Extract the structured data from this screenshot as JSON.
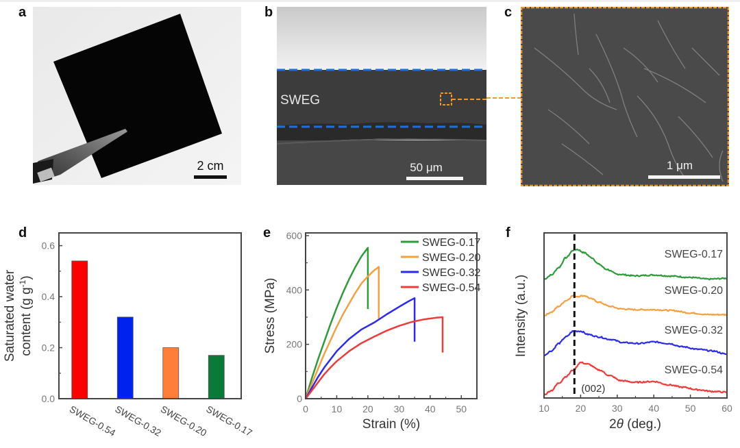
{
  "panels": {
    "a": {
      "letter": "a",
      "scale_bar_label": "2 cm"
    },
    "b": {
      "letter": "b",
      "layer_label": "SWEG",
      "scale_bar_label": "50 μm",
      "boundary_color": "#1f6fe0",
      "inset_color": "#f0962a"
    },
    "c": {
      "letter": "c",
      "scale_bar_label": "1 μm",
      "border_color": "#f0962a"
    },
    "d": {
      "letter": "d"
    },
    "e": {
      "letter": "e"
    },
    "f": {
      "letter": "f"
    }
  },
  "chart_data": [
    {
      "id": "d",
      "type": "bar",
      "title": "",
      "xlabel": "",
      "ylabel_line1": "Saturated water",
      "ylabel_line2": "content (g g",
      "ylabel_sup": "-1",
      "ylabel_end": ")",
      "ylim": [
        0,
        0.65
      ],
      "yticks": [
        0.0,
        0.2,
        0.4,
        0.6
      ],
      "ytick_labels": [
        "0.0",
        "0.2",
        "0.4",
        "0.6"
      ],
      "categories": [
        "SWEG-0.54",
        "SWEG-0.32",
        "SWEG-0.20",
        "SWEG-0.17"
      ],
      "values": [
        0.54,
        0.32,
        0.2,
        0.17
      ],
      "colors": [
        "#ff0000",
        "#0022ee",
        "#ff7f3a",
        "#0a7a3a"
      ],
      "grid": false
    },
    {
      "id": "e",
      "type": "line",
      "xlabel": "Strain (%)",
      "ylabel": "Stress (MPa)",
      "xlim": [
        0,
        55
      ],
      "ylim": [
        0,
        610
      ],
      "xticks": [
        0,
        10,
        20,
        30,
        40,
        50
      ],
      "xtick_labels": [
        "0",
        "10",
        "20",
        "30",
        "40",
        "50"
      ],
      "yticks": [
        0,
        200,
        400,
        600
      ],
      "ytick_labels": [
        "0",
        "200",
        "400",
        "600"
      ],
      "legend_position": "top-right",
      "grid": false,
      "series": [
        {
          "name": "SWEG-0.17",
          "color": "#2e9a3a",
          "points": [
            [
              0,
              0
            ],
            [
              2,
              75
            ],
            [
              4,
              145
            ],
            [
              6,
              210
            ],
            [
              8,
              275
            ],
            [
              10,
              335
            ],
            [
              12,
              390
            ],
            [
              14,
              440
            ],
            [
              16,
              485
            ],
            [
              18,
              525
            ],
            [
              20,
              555
            ],
            [
              20,
              330
            ]
          ]
        },
        {
          "name": "SWEG-0.20",
          "color": "#f5a040",
          "points": [
            [
              0,
              0
            ],
            [
              2,
              55
            ],
            [
              4,
              110
            ],
            [
              6,
              165
            ],
            [
              8,
              215
            ],
            [
              10,
              265
            ],
            [
              12,
              310
            ],
            [
              14,
              350
            ],
            [
              16,
              390
            ],
            [
              18,
              425
            ],
            [
              20,
              450
            ],
            [
              22,
              472
            ],
            [
              23.5,
              485
            ],
            [
              23.5,
              290
            ]
          ]
        },
        {
          "name": "SWEG-0.32",
          "color": "#2a2af0",
          "points": [
            [
              0,
              0
            ],
            [
              2,
              40
            ],
            [
              4,
              80
            ],
            [
              6,
              115
            ],
            [
              8,
              145
            ],
            [
              10,
              175
            ],
            [
              14,
              220
            ],
            [
              18,
              255
            ],
            [
              22,
              280
            ],
            [
              26,
              310
            ],
            [
              30,
              338
            ],
            [
              33,
              358
            ],
            [
              35,
              370
            ],
            [
              35,
              210
            ]
          ]
        },
        {
          "name": "SWEG-0.54",
          "color": "#f03a3a",
          "points": [
            [
              0,
              0
            ],
            [
              2,
              30
            ],
            [
              4,
              60
            ],
            [
              6,
              90
            ],
            [
              8,
              115
            ],
            [
              10,
              138
            ],
            [
              14,
              175
            ],
            [
              18,
              205
            ],
            [
              22,
              228
            ],
            [
              26,
              250
            ],
            [
              30,
              268
            ],
            [
              34,
              282
            ],
            [
              38,
              292
            ],
            [
              42,
              298
            ],
            [
              44,
              300
            ],
            [
              44,
              170
            ]
          ]
        }
      ]
    },
    {
      "id": "f",
      "type": "line",
      "xlabel_prefix": "2",
      "xlabel_theta": "θ",
      "xlabel_suffix": " (deg.)",
      "ylabel": "Intensity (a.u.)",
      "xlim": [
        10,
        60
      ],
      "ylim": [
        0,
        10
      ],
      "xticks": [
        10,
        20,
        30,
        40,
        50,
        60
      ],
      "xtick_labels": [
        "10",
        "20",
        "30",
        "40",
        "50",
        "60"
      ],
      "yticks": [],
      "grid": false,
      "annotation": {
        "text": "(002)",
        "x": 18.3
      },
      "series": [
        {
          "name": "SWEG-0.17",
          "label": "SWEG-0.17",
          "color": "#2e9a3a",
          "offset": 7.2,
          "points": [
            [
              10,
              0.0
            ],
            [
              12,
              0.25
            ],
            [
              14,
              0.7
            ],
            [
              16,
              1.3
            ],
            [
              18,
              1.75
            ],
            [
              19,
              1.8
            ],
            [
              21,
              1.6
            ],
            [
              23,
              1.3
            ],
            [
              25,
              0.9
            ],
            [
              27,
              0.6
            ],
            [
              30,
              0.3
            ],
            [
              35,
              0.2
            ],
            [
              40,
              0.25
            ],
            [
              45,
              0.18
            ],
            [
              50,
              0.1
            ],
            [
              55,
              0.0
            ],
            [
              60,
              0.05
            ]
          ]
        },
        {
          "name": "SWEG-0.20",
          "label": "SWEG-0.20",
          "color": "#f5a040",
          "offset": 5.0,
          "points": [
            [
              10,
              0.0
            ],
            [
              12,
              0.2
            ],
            [
              14,
              0.55
            ],
            [
              16,
              0.9
            ],
            [
              18,
              1.2
            ],
            [
              19,
              1.15
            ],
            [
              21,
              1.2
            ],
            [
              23,
              1.0
            ],
            [
              25,
              0.8
            ],
            [
              28,
              0.55
            ],
            [
              31,
              0.4
            ],
            [
              35,
              0.35
            ],
            [
              40,
              0.35
            ],
            [
              45,
              0.3
            ],
            [
              50,
              0.15
            ],
            [
              55,
              0.05
            ],
            [
              60,
              0.05
            ]
          ]
        },
        {
          "name": "SWEG-0.32",
          "label": "SWEG-0.32",
          "color": "#2a2af0",
          "offset": 2.6,
          "points": [
            [
              10,
              0.0
            ],
            [
              12,
              0.25
            ],
            [
              14,
              0.7
            ],
            [
              16,
              1.1
            ],
            [
              18,
              1.45
            ],
            [
              20,
              1.45
            ],
            [
              22,
              1.25
            ],
            [
              25,
              1.1
            ],
            [
              28,
              0.95
            ],
            [
              32,
              0.75
            ],
            [
              36,
              0.7
            ],
            [
              40,
              0.8
            ],
            [
              44,
              0.7
            ],
            [
              48,
              0.5
            ],
            [
              52,
              0.35
            ],
            [
              56,
              0.25
            ],
            [
              60,
              0.05
            ]
          ]
        },
        {
          "name": "SWEG-0.54",
          "label": "SWEG-0.54",
          "color": "#f03a3a",
          "offset": 0.2,
          "points": [
            [
              10,
              0.0
            ],
            [
              12,
              0.25
            ],
            [
              14,
              0.7
            ],
            [
              16,
              1.1
            ],
            [
              18,
              1.5
            ],
            [
              20,
              1.95
            ],
            [
              22,
              1.85
            ],
            [
              25,
              1.5
            ],
            [
              28,
              1.15
            ],
            [
              31,
              0.85
            ],
            [
              35,
              0.75
            ],
            [
              40,
              0.8
            ],
            [
              44,
              0.6
            ],
            [
              48,
              0.45
            ],
            [
              52,
              0.3
            ],
            [
              56,
              0.2
            ],
            [
              60,
              0.15
            ]
          ]
        }
      ]
    }
  ]
}
